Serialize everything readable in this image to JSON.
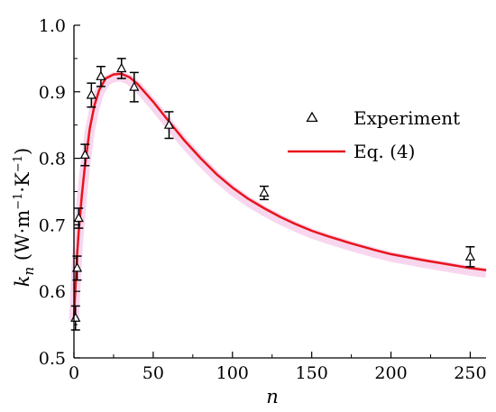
{
  "chart_data": {
    "type": "scatter",
    "xlabel": "n",
    "ylabel": "kn (W·m−1·K−1)",
    "ylabel_parts": {
      "k": "k",
      "n": "n",
      "open": " (W·m",
      "exp1": "−1",
      "mid": "·K",
      "exp2": "−1",
      "close": ")"
    },
    "xlim": [
      0,
      260
    ],
    "ylim": [
      0.5,
      1.0
    ],
    "xticks": [
      "0",
      "50",
      "100",
      "150",
      "200",
      "250"
    ],
    "xtick_values": [
      0,
      50,
      100,
      150,
      200,
      250
    ],
    "yticks": [
      "0.5",
      "0.6",
      "0.7",
      "0.8",
      "0.9",
      "1.0"
    ],
    "ytick_values": [
      0.5,
      0.6,
      0.7,
      0.8,
      0.9,
      1.0
    ],
    "legend_position": "top-right",
    "series": [
      {
        "name": "Experiment",
        "kind": "scatter",
        "marker": "open-triangle",
        "color": "#000000",
        "x": [
          1,
          2,
          3,
          7,
          11,
          17,
          30,
          38,
          60,
          120,
          250
        ],
        "y": [
          0.56,
          0.635,
          0.71,
          0.805,
          0.895,
          0.923,
          0.935,
          0.907,
          0.85,
          0.748,
          0.652
        ],
        "err": [
          0.018,
          0.018,
          0.015,
          0.016,
          0.018,
          0.015,
          0.015,
          0.022,
          0.02,
          0.01,
          0.015
        ]
      },
      {
        "name": "Eq. (4)",
        "kind": "line",
        "color": "#e8141c",
        "band_color": "#f2b6e0",
        "x": [
          0,
          1,
          2,
          3,
          5,
          7,
          10,
          13,
          16,
          20,
          25,
          30,
          35,
          40,
          50,
          60,
          70,
          80,
          90,
          100,
          110,
          120,
          130,
          140,
          150,
          160,
          175,
          190,
          200,
          220,
          240,
          250,
          260
        ],
        "y": [
          0.56,
          0.61,
          0.655,
          0.69,
          0.745,
          0.79,
          0.845,
          0.88,
          0.903,
          0.92,
          0.926,
          0.927,
          0.922,
          0.912,
          0.885,
          0.855,
          0.826,
          0.8,
          0.776,
          0.756,
          0.739,
          0.725,
          0.712,
          0.701,
          0.691,
          0.683,
          0.672,
          0.662,
          0.656,
          0.647,
          0.639,
          0.635,
          0.632
        ]
      }
    ]
  }
}
